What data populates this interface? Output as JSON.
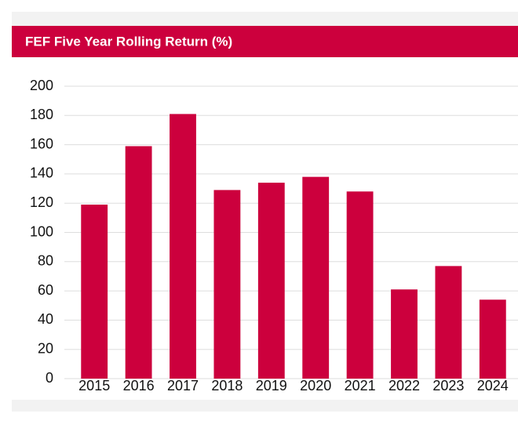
{
  "chart_data": {
    "type": "bar",
    "title": "FEF Five Year Rolling Return (%)",
    "categories": [
      "2015",
      "2016",
      "2017",
      "2018",
      "2019",
      "2020",
      "2021",
      "2022",
      "2023",
      "2024"
    ],
    "values": [
      119,
      159,
      181,
      129,
      134,
      138,
      128,
      61,
      77,
      54
    ],
    "color": "#cc003d",
    "ylim": [
      0,
      200
    ],
    "yticks": [
      0,
      20,
      40,
      60,
      80,
      100,
      120,
      140,
      160,
      180,
      200
    ],
    "grid": true
  }
}
